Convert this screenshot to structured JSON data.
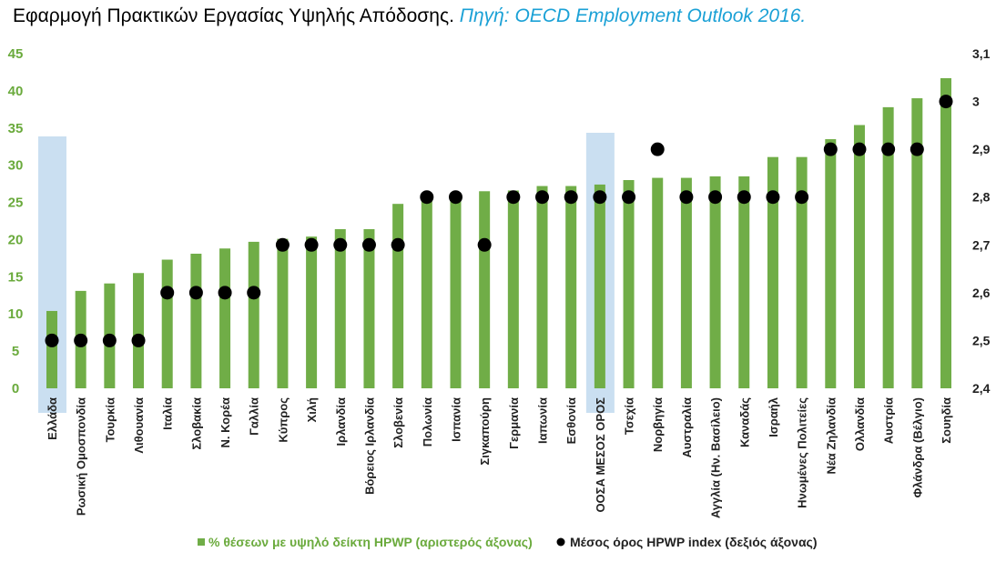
{
  "title": {
    "main": "Εφαρμογή Πρακτικών Εργασίας Υψηλής Απόδοσης.",
    "source": "Πηγή: OECD Employment Outlook 2016."
  },
  "colors": {
    "bar": "#70ad47",
    "dot": "#000000",
    "highlight": "#bdd7ee",
    "left_axis_text": "#6aaa3c",
    "source_text": "#1ba1d6"
  },
  "chart_data": {
    "type": "bar",
    "categories": [
      "Ελλάδα",
      "Ρωσική Ομοσπονδία",
      "Τουρκία",
      "Λιθουανία",
      "Ιταλία",
      "Σλοβακία",
      "Ν. Κορέα",
      "Γαλλία",
      "Κύπρος",
      "Χιλή",
      "Ιρλανδία",
      "Βόρειος Ιρλανδία",
      "Σλοβενία",
      "Πολωνία",
      "Ισπανία",
      "Σιγκαπούρη",
      "Γερμανία",
      "Ιαπωνία",
      "Εσθονία",
      "ΟΟΣΑ ΜΕΣΟΣ ΟΡΟΣ",
      "Τσεχία",
      "Νορβηγία",
      "Αυστραλία",
      "Αγγλία (Ην. Βασίλειο)",
      "Καναδάς",
      "Ισραήλ",
      "Ηνωμένες Πολιτείες",
      "Νέα Ζηλανδία",
      "Ολλανδία",
      "Αυστρία",
      "Φλάνδρα (Βέλγιο)",
      "Σουηδία"
    ],
    "series": [
      {
        "name": "% θέσεων με υψηλό δείκτη HPWP (αριστερός άξονας)",
        "axis": "left",
        "type": "bar",
        "values": [
          10.4,
          13.1,
          14.1,
          15.5,
          17.3,
          18.1,
          18.8,
          19.7,
          20.1,
          20.4,
          21.4,
          21.4,
          24.8,
          26.2,
          26.3,
          26.5,
          26.6,
          27.2,
          27.2,
          27.4,
          28.0,
          28.3,
          28.3,
          28.5,
          28.5,
          31.1,
          31.1,
          33.5,
          35.4,
          37.8,
          39.0,
          41.7
        ]
      },
      {
        "name": "Μέσος όρος HPWP index (δεξιός άξονας)",
        "axis": "right",
        "type": "scatter",
        "values": [
          2.5,
          2.5,
          2.5,
          2.5,
          2.6,
          2.6,
          2.6,
          2.6,
          2.7,
          2.7,
          2.7,
          2.7,
          2.7,
          2.8,
          2.8,
          2.7,
          2.8,
          2.8,
          2.8,
          2.8,
          2.8,
          2.9,
          2.8,
          2.8,
          2.8,
          2.8,
          2.8,
          2.9,
          2.9,
          2.9,
          2.9,
          3.0
        ]
      }
    ],
    "highlighted_categories": [
      "Ελλάδα",
      "ΟΟΣΑ ΜΕΣΟΣ ΟΡΟΣ"
    ],
    "y_left": {
      "ylim": [
        0,
        45
      ],
      "ticks": [
        "0",
        "5",
        "10",
        "15",
        "20",
        "25",
        "30",
        "35",
        "40",
        "45"
      ]
    },
    "y_right": {
      "ylim": [
        2.4,
        3.1
      ],
      "ticks": [
        "2,4",
        "2,5",
        "2,6",
        "2,7",
        "2,8",
        "2,9",
        "3",
        "3,1"
      ]
    },
    "grid": false,
    "legend_position": "bottom"
  }
}
